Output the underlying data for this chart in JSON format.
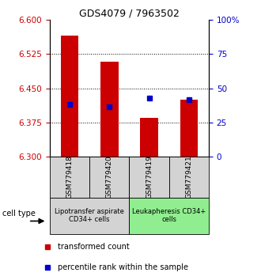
{
  "title": "GDS4079 / 7963502",
  "samples": [
    "GSM779418",
    "GSM779420",
    "GSM779419",
    "GSM779421"
  ],
  "red_bar_values": [
    6.565,
    6.508,
    6.385,
    6.425
  ],
  "blue_marker_values": [
    6.415,
    6.41,
    6.428,
    6.425
  ],
  "ymin": 6.3,
  "ymax": 6.6,
  "yticks_left": [
    6.3,
    6.375,
    6.45,
    6.525,
    6.6
  ],
  "yticks_right": [
    0,
    25,
    50,
    75,
    100
  ],
  "bar_color": "#cc0000",
  "blue_color": "#0000cc",
  "bar_width": 0.45,
  "group1_label": "Lipotransfer aspirate\nCD34+ cells",
  "group2_label": "Leukapheresis CD34+\ncells",
  "group1_color": "#d3d3d3",
  "group2_color": "#90ee90",
  "legend_red": "transformed count",
  "legend_blue": "percentile rank within the sample",
  "cell_type_label": "cell type",
  "left_axis_color": "#cc0000",
  "right_axis_color": "#0000cc",
  "title_fontsize": 9,
  "tick_fontsize": 7.5,
  "sample_fontsize": 6.5,
  "celltype_fontsize": 6,
  "legend_fontsize": 7
}
